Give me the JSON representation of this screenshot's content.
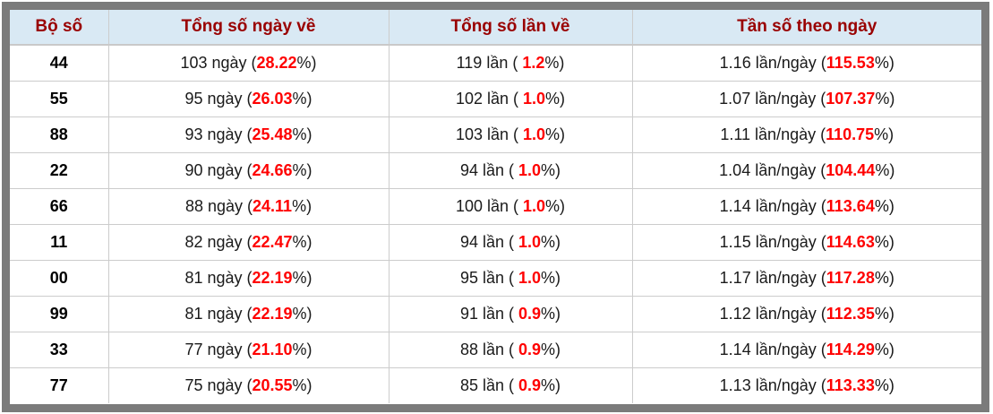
{
  "colors": {
    "header_bg": "#d9e9f4",
    "header_text": "#990000",
    "percent_red": "#ff0000",
    "frame_gray": "#7b7b7b",
    "grid_line": "#cccccc"
  },
  "table": {
    "headers": [
      "Bộ số",
      "Tổng số ngày về",
      "Tổng số lần về",
      "Tần số theo ngày"
    ],
    "rows": [
      {
        "pair": "44",
        "days": {
          "prefix": "103 ngày (",
          "pct": "28.22",
          "suffix": "%)"
        },
        "times": {
          "prefix": "119 lần ( ",
          "pct": "1.2",
          "suffix": "%)"
        },
        "freq": {
          "prefix": "1.16 lần/ngày (",
          "pct": "115.53",
          "suffix": "%)"
        }
      },
      {
        "pair": "55",
        "days": {
          "prefix": "95 ngày (",
          "pct": "26.03",
          "suffix": "%)"
        },
        "times": {
          "prefix": "102 lần ( ",
          "pct": "1.0",
          "suffix": "%)"
        },
        "freq": {
          "prefix": "1.07 lần/ngày (",
          "pct": "107.37",
          "suffix": "%)"
        }
      },
      {
        "pair": "88",
        "days": {
          "prefix": "93 ngày (",
          "pct": "25.48",
          "suffix": "%)"
        },
        "times": {
          "prefix": "103 lần ( ",
          "pct": "1.0",
          "suffix": "%)"
        },
        "freq": {
          "prefix": "1.11 lần/ngày (",
          "pct": "110.75",
          "suffix": "%)"
        }
      },
      {
        "pair": "22",
        "days": {
          "prefix": "90 ngày (",
          "pct": "24.66",
          "suffix": "%)"
        },
        "times": {
          "prefix": "94 lần ( ",
          "pct": "1.0",
          "suffix": "%)"
        },
        "freq": {
          "prefix": "1.04 lần/ngày (",
          "pct": "104.44",
          "suffix": "%)"
        }
      },
      {
        "pair": "66",
        "days": {
          "prefix": "88 ngày (",
          "pct": "24.11",
          "suffix": "%)"
        },
        "times": {
          "prefix": "100 lần ( ",
          "pct": "1.0",
          "suffix": "%)"
        },
        "freq": {
          "prefix": "1.14 lần/ngày (",
          "pct": "113.64",
          "suffix": "%)"
        }
      },
      {
        "pair": "11",
        "days": {
          "prefix": "82 ngày (",
          "pct": "22.47",
          "suffix": "%)"
        },
        "times": {
          "prefix": "94 lần ( ",
          "pct": "1.0",
          "suffix": "%)"
        },
        "freq": {
          "prefix": "1.15 lần/ngày (",
          "pct": "114.63",
          "suffix": "%)"
        }
      },
      {
        "pair": "00",
        "days": {
          "prefix": "81 ngày (",
          "pct": "22.19",
          "suffix": "%)"
        },
        "times": {
          "prefix": "95 lần ( ",
          "pct": "1.0",
          "suffix": "%)"
        },
        "freq": {
          "prefix": "1.17 lần/ngày (",
          "pct": "117.28",
          "suffix": "%)"
        }
      },
      {
        "pair": "99",
        "days": {
          "prefix": "81 ngày (",
          "pct": "22.19",
          "suffix": "%)"
        },
        "times": {
          "prefix": "91 lần ( ",
          "pct": "0.9",
          "suffix": "%)"
        },
        "freq": {
          "prefix": "1.12 lần/ngày (",
          "pct": "112.35",
          "suffix": "%)"
        }
      },
      {
        "pair": "33",
        "days": {
          "prefix": "77 ngày (",
          "pct": "21.10",
          "suffix": "%)"
        },
        "times": {
          "prefix": "88 lần ( ",
          "pct": "0.9",
          "suffix": "%)"
        },
        "freq": {
          "prefix": "1.14 lần/ngày (",
          "pct": "114.29",
          "suffix": "%)"
        }
      },
      {
        "pair": "77",
        "days": {
          "prefix": "75 ngày (",
          "pct": "20.55",
          "suffix": "%)"
        },
        "times": {
          "prefix": "85 lần ( ",
          "pct": "0.9",
          "suffix": "%)"
        },
        "freq": {
          "prefix": "1.13 lần/ngày (",
          "pct": "113.33",
          "suffix": "%)"
        }
      }
    ]
  }
}
